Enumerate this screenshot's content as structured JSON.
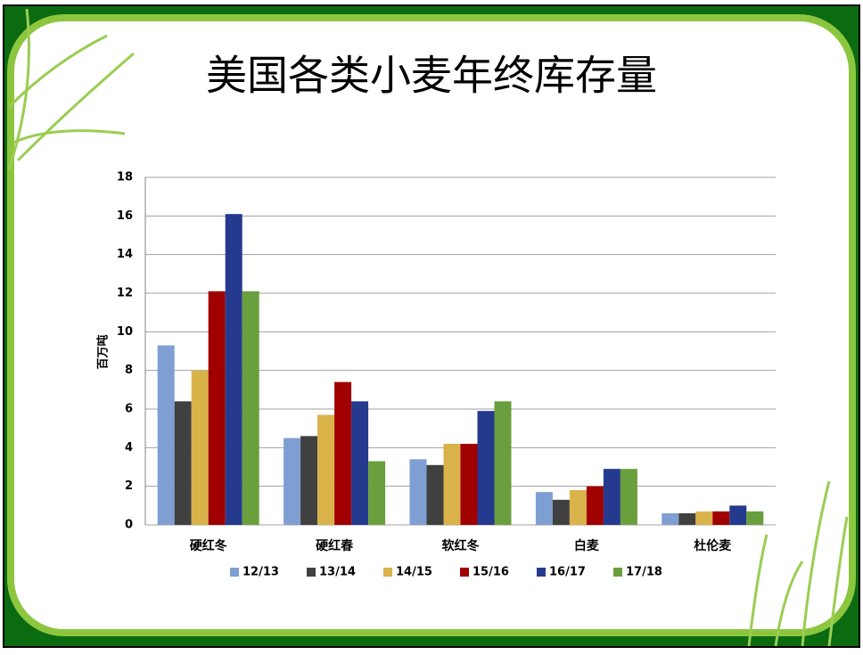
{
  "chart_data": {
    "type": "bar",
    "title": "美国各类小麦年终库存量",
    "y_label": "百万吨",
    "categories": [
      "硬红冬",
      "硬红春",
      "软红冬",
      "白麦",
      "杜伦麦"
    ],
    "series": [
      {
        "name": "12/13",
        "color": "#7f9fd2",
        "values": [
          9.3,
          4.5,
          3.4,
          1.7,
          0.6
        ]
      },
      {
        "name": "13/14",
        "color": "#404040",
        "values": [
          6.4,
          4.6,
          3.1,
          1.3,
          0.6
        ]
      },
      {
        "name": "14/15",
        "color": "#d9b24a",
        "values": [
          8.0,
          5.7,
          4.2,
          1.8,
          0.7
        ]
      },
      {
        "name": "15/16",
        "color": "#a00000",
        "values": [
          12.1,
          7.4,
          4.2,
          2.0,
          0.7
        ]
      },
      {
        "name": "16/17",
        "color": "#253a8e",
        "values": [
          16.1,
          6.4,
          5.9,
          2.9,
          1.0
        ]
      },
      {
        "name": "17/18",
        "color": "#6a9f3e",
        "values": [
          12.1,
          3.3,
          6.4,
          2.9,
          0.7
        ]
      }
    ],
    "ylim": [
      0,
      18
    ],
    "yticks": [
      0,
      2,
      4,
      6,
      8,
      10,
      12,
      14,
      16,
      18
    ],
    "grid": true,
    "legend": "bottom"
  }
}
